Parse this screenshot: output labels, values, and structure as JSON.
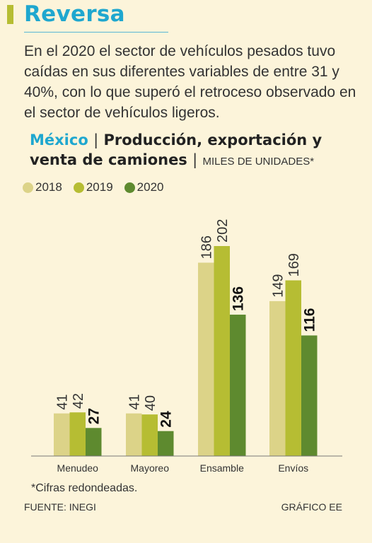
{
  "header": {
    "title": "Reversa",
    "intro": "En el 2020 el sector de vehículos pesados tuvo caídas en sus diferentes variables de entre 31 y 40%, con lo que superó el retroceso observado en el sector de vehículos ligeros."
  },
  "chart_heading": {
    "country": "México",
    "separator": "|",
    "title": "Producción, exportación y venta de camiones",
    "units": "MILES DE UNIDADES*"
  },
  "legend": [
    {
      "label": "2018",
      "color": "#dcd388"
    },
    {
      "label": "2019",
      "color": "#b6bd33"
    },
    {
      "label": "2020",
      "color": "#5e8a2f"
    }
  ],
  "chart_data": {
    "type": "bar",
    "title": "Producción, exportación y venta de camiones",
    "ylabel": "MILES DE UNIDADES*",
    "categories": [
      "Menudeo",
      "Mayoreo",
      "Ensamble",
      "Envíos"
    ],
    "series": [
      {
        "name": "2018",
        "color": "#dcd388",
        "values": [
          41,
          41,
          186,
          149
        ]
      },
      {
        "name": "2019",
        "color": "#b6bd33",
        "values": [
          42,
          40,
          202,
          169
        ]
      },
      {
        "name": "2020",
        "color": "#5e8a2f",
        "values": [
          27,
          24,
          136,
          116
        ]
      }
    ],
    "ylim": [
      0,
      202
    ],
    "grid": false,
    "legend_position": "top-left",
    "bold_series": "2020"
  },
  "footer": {
    "note": "*Cifras redondeadas.",
    "source": "FUENTE: INEGI",
    "credit": "GRÁFICO EE"
  }
}
